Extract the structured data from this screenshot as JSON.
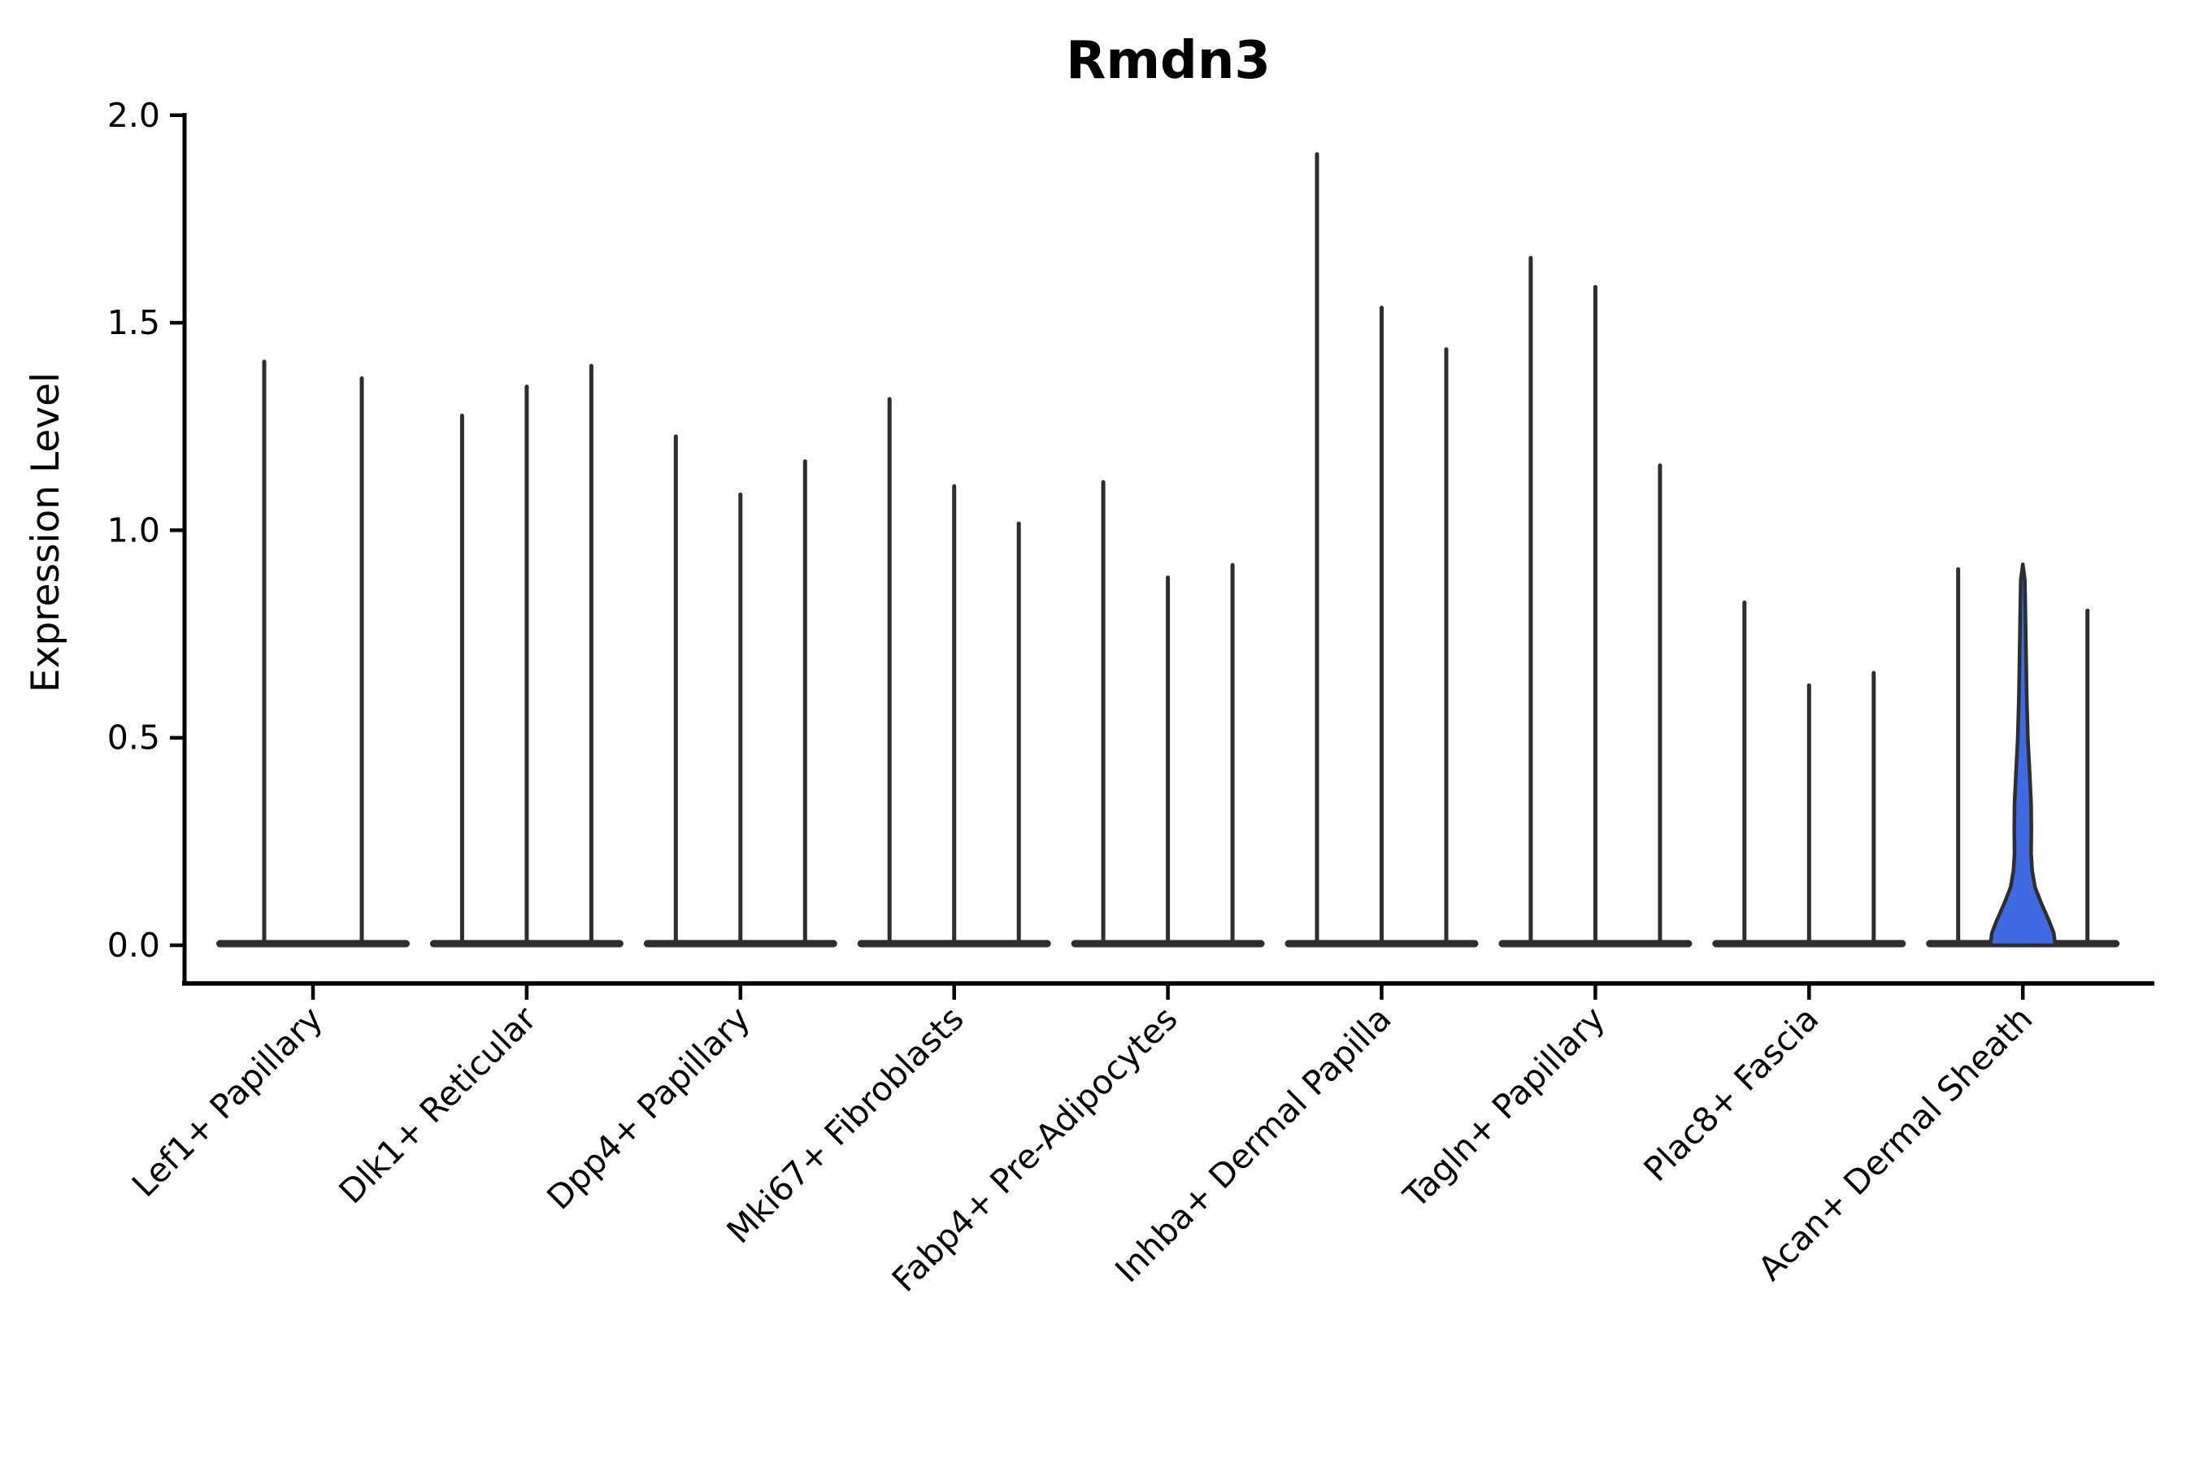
{
  "chart_data": {
    "type": "violin",
    "title": "Rmdn3",
    "ylabel": "Expression Level",
    "xlabel": "",
    "legend": null,
    "grid": false,
    "ylim": [
      -0.09,
      2.0
    ],
    "yticks": [
      {
        "value": 0.0,
        "label": "0.0"
      },
      {
        "value": 0.5,
        "label": "0.5"
      },
      {
        "value": 1.0,
        "label": "1.0"
      },
      {
        "value": 1.5,
        "label": "1.5"
      },
      {
        "value": 2.0,
        "label": "2.0"
      }
    ],
    "colors": {
      "violin_line": "#2e2e2e",
      "spine": "#000000",
      "text": "#000000",
      "highlight_fill": "#4169e1"
    },
    "categories": [
      {
        "label": "Lef1+ Papillary",
        "violins": [
          {
            "max": 1.41
          },
          {
            "max": 1.37
          }
        ]
      },
      {
        "label": "Dlk1+ Reticular",
        "violins": [
          {
            "max": 1.28
          },
          {
            "max": 1.35
          },
          {
            "max": 1.4
          }
        ]
      },
      {
        "label": "Dpp4+ Papillary",
        "violins": [
          {
            "max": 1.23
          },
          {
            "max": 1.09
          },
          {
            "max": 1.17
          }
        ]
      },
      {
        "label": "Mki67+ Fibroblasts",
        "violins": [
          {
            "max": 1.32
          },
          {
            "max": 1.11
          },
          {
            "max": 1.02
          }
        ]
      },
      {
        "label": "Fabp4+ Pre-Adipocytes",
        "violins": [
          {
            "max": 1.12
          },
          {
            "max": 0.89
          },
          {
            "max": 0.92
          }
        ]
      },
      {
        "label": "Inhba+ Dermal Papilla",
        "violins": [
          {
            "max": 1.91
          },
          {
            "max": 1.54
          },
          {
            "max": 1.44
          }
        ]
      },
      {
        "label": "Tagln+ Papillary",
        "violins": [
          {
            "max": 1.66
          },
          {
            "max": 1.59
          },
          {
            "max": 1.16
          }
        ]
      },
      {
        "label": "Plac8+ Fascia",
        "violins": [
          {
            "max": 0.83
          },
          {
            "max": 0.63
          },
          {
            "max": 0.66
          }
        ]
      },
      {
        "label": "Acan+ Dermal Sheath",
        "violins": [
          {
            "max": 0.91
          },
          {
            "max": 0.92,
            "highlighted": true,
            "profile": [
              [
                0.918,
                0
              ],
              [
                0.88,
                2.5
              ],
              [
                0.8,
                3.2
              ],
              [
                0.7,
                4.0
              ],
              [
                0.6,
                4.8
              ],
              [
                0.5,
                6.2
              ],
              [
                0.42,
                8.3
              ],
              [
                0.34,
                10.2
              ],
              [
                0.28,
                10.5
              ],
              [
                0.22,
                10.2
              ],
              [
                0.18,
                11.5
              ],
              [
                0.14,
                15
              ],
              [
                0.1,
                23
              ],
              [
                0.06,
                32
              ],
              [
                0.03,
                38
              ],
              [
                0.0,
                40
              ]
            ]
          },
          {
            "max": 0.81
          }
        ]
      }
    ]
  }
}
